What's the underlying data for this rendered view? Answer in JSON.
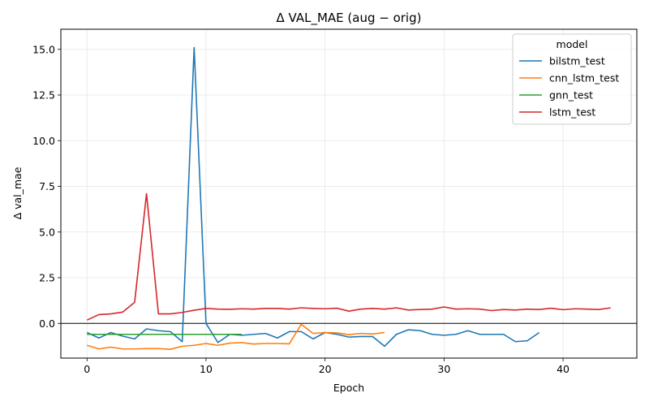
{
  "chart_data": {
    "type": "line",
    "title": "Δ VAL_MAE (aug − orig)",
    "xlabel": "Epoch",
    "ylabel": "Δ val_mae",
    "xlim": [
      -2.2,
      46.2
    ],
    "ylim": [
      -1.9,
      16.1
    ],
    "xticks": [
      0,
      10,
      20,
      30,
      40
    ],
    "yticks": [
      0.0,
      2.5,
      5.0,
      7.5,
      10.0,
      12.5,
      15.0
    ],
    "ytick_labels": [
      "0.0",
      "2.5",
      "5.0",
      "7.5",
      "10.0",
      "12.5",
      "15.0"
    ],
    "grid": true,
    "zero_line": true,
    "legend": {
      "title": "model",
      "position": "top-right"
    },
    "series": [
      {
        "name": "bilstm_test",
        "color": "#1f77b4",
        "x": [
          0,
          1,
          2,
          3,
          4,
          5,
          6,
          7,
          8,
          9,
          10,
          11,
          12,
          13,
          14,
          15,
          16,
          17,
          18,
          19,
          20,
          21,
          22,
          23,
          24,
          25,
          26,
          27,
          28,
          29,
          30,
          31,
          32,
          33,
          34,
          35,
          36,
          37,
          38
        ],
        "y": [
          -0.5,
          -0.8,
          -0.5,
          -0.7,
          -0.85,
          -0.3,
          -0.4,
          -0.45,
          -1.0,
          15.1,
          0.0,
          -1.05,
          -0.6,
          -0.65,
          -0.6,
          -0.55,
          -0.8,
          -0.45,
          -0.45,
          -0.85,
          -0.5,
          -0.6,
          -0.75,
          -0.72,
          -0.72,
          -1.25,
          -0.6,
          -0.35,
          -0.4,
          -0.6,
          -0.65,
          -0.6,
          -0.4,
          -0.6,
          -0.6,
          -0.6,
          -1.0,
          -0.95,
          -0.5
        ]
      },
      {
        "name": "cnn_lstm_test",
        "color": "#ff7f0e",
        "x": [
          0,
          1,
          2,
          3,
          4,
          5,
          6,
          7,
          8,
          9,
          10,
          11,
          12,
          13,
          14,
          15,
          16,
          17,
          18,
          19,
          20,
          21,
          22,
          23,
          24,
          25
        ],
        "y": [
          -1.2,
          -1.4,
          -1.3,
          -1.4,
          -1.4,
          -1.38,
          -1.38,
          -1.42,
          -1.25,
          -1.2,
          -1.1,
          -1.2,
          -1.08,
          -1.05,
          -1.13,
          -1.1,
          -1.1,
          -1.12,
          -0.05,
          -0.55,
          -0.5,
          -0.52,
          -0.62,
          -0.55,
          -0.58,
          -0.5
        ]
      },
      {
        "name": "gnn_test",
        "color": "#2ca02c",
        "x": [
          0,
          1,
          2,
          3,
          4,
          5,
          6,
          7,
          8,
          9,
          10,
          11,
          12,
          13
        ],
        "y": [
          -0.6,
          -0.6,
          -0.6,
          -0.6,
          -0.6,
          -0.6,
          -0.6,
          -0.6,
          -0.6,
          -0.6,
          -0.6,
          -0.6,
          -0.6,
          -0.6
        ]
      },
      {
        "name": "lstm_test",
        "color": "#d62728",
        "x": [
          0,
          1,
          2,
          3,
          4,
          5,
          6,
          7,
          8,
          9,
          10,
          11,
          12,
          13,
          14,
          15,
          16,
          17,
          18,
          19,
          20,
          21,
          22,
          23,
          24,
          25,
          26,
          27,
          28,
          29,
          30,
          31,
          32,
          33,
          34,
          35,
          36,
          37,
          38,
          39,
          40,
          41,
          42,
          43,
          44
        ],
        "y": [
          0.18,
          0.48,
          0.52,
          0.62,
          1.15,
          7.1,
          0.52,
          0.52,
          0.6,
          0.72,
          0.82,
          0.78,
          0.77,
          0.8,
          0.78,
          0.82,
          0.82,
          0.78,
          0.85,
          0.82,
          0.8,
          0.83,
          0.67,
          0.78,
          0.82,
          0.78,
          0.85,
          0.73,
          0.76,
          0.78,
          0.9,
          0.78,
          0.8,
          0.78,
          0.7,
          0.76,
          0.73,
          0.78,
          0.76,
          0.83,
          0.75,
          0.8,
          0.78,
          0.76,
          0.85
        ]
      }
    ]
  }
}
